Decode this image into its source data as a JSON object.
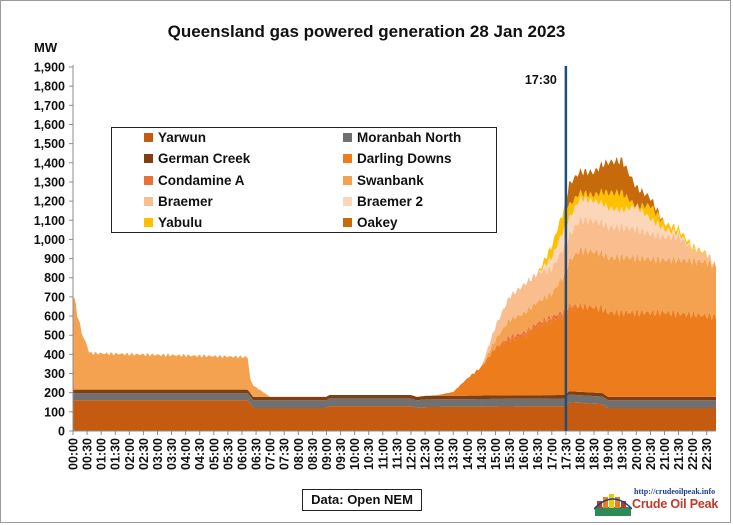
{
  "chart_data": {
    "type": "area",
    "title": "Queensland  gas powered generation 28 Jan 2023",
    "ylabel": "MW",
    "xlabel": "",
    "ylim": [
      0,
      1900
    ],
    "y_ticks": [
      "0",
      "100",
      "200",
      "300",
      "400",
      "500",
      "600",
      "700",
      "800",
      "900",
      "1,000",
      "1,100",
      "1,200",
      "1,300",
      "1,400",
      "1,500",
      "1,600",
      "1,700",
      "1,800",
      "1,900"
    ],
    "x_ticks": [
      "00:00",
      "00:30",
      "01:00",
      "01:30",
      "02:00",
      "02:30",
      "03:00",
      "03:30",
      "04:00",
      "04:30",
      "05:00",
      "05:30",
      "06:00",
      "06:30",
      "07:00",
      "07:30",
      "08:00",
      "08:30",
      "09:00",
      "09:30",
      "10:00",
      "10:30",
      "11:00",
      "11:30",
      "12:00",
      "12:30",
      "13:00",
      "13:30",
      "14:00",
      "14:30",
      "15:00",
      "15:30",
      "16:00",
      "16:30",
      "17:00",
      "17:30",
      "18:00",
      "18:30",
      "19:00",
      "19:30",
      "20:00",
      "20:30",
      "21:00",
      "21:30",
      "22:00",
      "22:30"
    ],
    "stacked": true,
    "grid": false,
    "legend_position": "inside-left",
    "annotation": {
      "label": "17:30",
      "x": "17:30"
    },
    "series": [
      {
        "name": "Yarwun",
        "color": "#c55a11",
        "x": [
          0,
          6.2,
          6.4,
          9.0,
          9.1,
          12.0,
          12.2,
          12.5,
          17.5,
          17.6,
          18.8,
          19.0,
          20.0,
          22.83
        ],
        "values": [
          160,
          160,
          120,
          120,
          130,
          130,
          120,
          125,
          130,
          150,
          140,
          120,
          120,
          120
        ]
      },
      {
        "name": "Moranbah North",
        "color": "#707070",
        "x": [
          0,
          6.2,
          6.4,
          22.83
        ],
        "values": [
          38,
          38,
          40,
          40
        ]
      },
      {
        "name": "German Creek",
        "color": "#7f3f10",
        "x": [
          0,
          22.83
        ],
        "values": [
          18,
          18
        ]
      },
      {
        "name": "Darling Downs",
        "color": "#ed7d1c",
        "x": [
          0,
          7.0,
          12.5,
          13.0,
          13.5,
          14.0,
          14.5,
          15.0,
          15.5,
          16.0,
          16.5,
          17.0,
          17.5,
          17.6,
          18.0,
          19.0,
          20.0,
          21.0,
          22.0,
          22.83
        ],
        "values": [
          0,
          0,
          0,
          5,
          20,
          90,
          150,
          250,
          290,
          310,
          360,
          390,
          420,
          430,
          450,
          440,
          440,
          440,
          430,
          420
        ]
      },
      {
        "name": "Condamine A",
        "color": "#e9703a",
        "x": [
          0,
          15.0,
          15.5,
          17.5,
          18.0,
          22.83
        ],
        "values": [
          0,
          0,
          15,
          20,
          0,
          0
        ]
      },
      {
        "name": "Swanbank",
        "color": "#f4a150",
        "x": [
          0,
          0.3,
          0.6,
          6.2,
          6.3,
          7.0,
          12.5,
          13.0,
          14.5,
          15.0,
          15.5,
          16.0,
          16.5,
          17.0,
          17.5,
          17.6,
          18.0,
          18.5,
          19.0,
          19.5,
          20.0,
          20.5,
          21.0,
          21.5,
          22.0,
          22.5,
          22.83
        ],
        "values": [
          500,
          300,
          190,
          170,
          70,
          0,
          0,
          0,
          0,
          40,
          90,
          100,
          110,
          120,
          200,
          230,
          290,
          290,
          285,
          290,
          285,
          280,
          275,
          280,
          280,
          280,
          260
        ]
      },
      {
        "name": "Braemer",
        "color": "#f9bd8e",
        "x": [
          0,
          14.5,
          15.0,
          15.5,
          16.0,
          16.5,
          17.0,
          17.5,
          17.6,
          18.0,
          19.0,
          20.0,
          20.5,
          21.0,
          21.5,
          22.0,
          22.5,
          22.83
        ],
        "values": [
          0,
          0,
          70,
          120,
          150,
          150,
          130,
          150,
          130,
          160,
          160,
          150,
          130,
          120,
          120,
          60,
          40,
          0
        ]
      },
      {
        "name": "Braemer 2",
        "color": "#fbd6b8",
        "x": [
          0,
          16.0,
          16.5,
          17.0,
          17.5,
          17.6,
          18.0,
          19.0,
          19.5,
          20.0,
          21.0,
          21.5,
          22.0,
          22.83
        ],
        "values": [
          0,
          0,
          0,
          60,
          100,
          90,
          110,
          100,
          90,
          120,
          40,
          20,
          0,
          0
        ]
      },
      {
        "name": "Yabulu",
        "color": "#ffc000",
        "x": [
          0,
          16.5,
          17.0,
          17.5,
          17.6,
          18.0,
          18.5,
          19.0,
          19.5,
          20.0,
          20.5,
          21.0,
          22.83
        ],
        "values": [
          0,
          0,
          60,
          110,
          70,
          30,
          30,
          80,
          90,
          0,
          70,
          30,
          0
        ]
      },
      {
        "name": "Oakey",
        "color": "#c66a0b",
        "x": [
          0,
          17.0,
          17.5,
          17.6,
          18.0,
          18.5,
          19.0,
          19.5,
          20.0,
          20.5,
          21.0,
          22.83
        ],
        "values": [
          0,
          0,
          0,
          110,
          110,
          120,
          160,
          170,
          100,
          40,
          0,
          0
        ]
      }
    ]
  },
  "source_label": "Data: Open NEM",
  "logo": {
    "url": "http://crudeoilpeak.info",
    "name": "Crude Oil Peak"
  },
  "colors": {
    "marker_line": "#1f4e79",
    "axis": "#8c8c8c"
  }
}
